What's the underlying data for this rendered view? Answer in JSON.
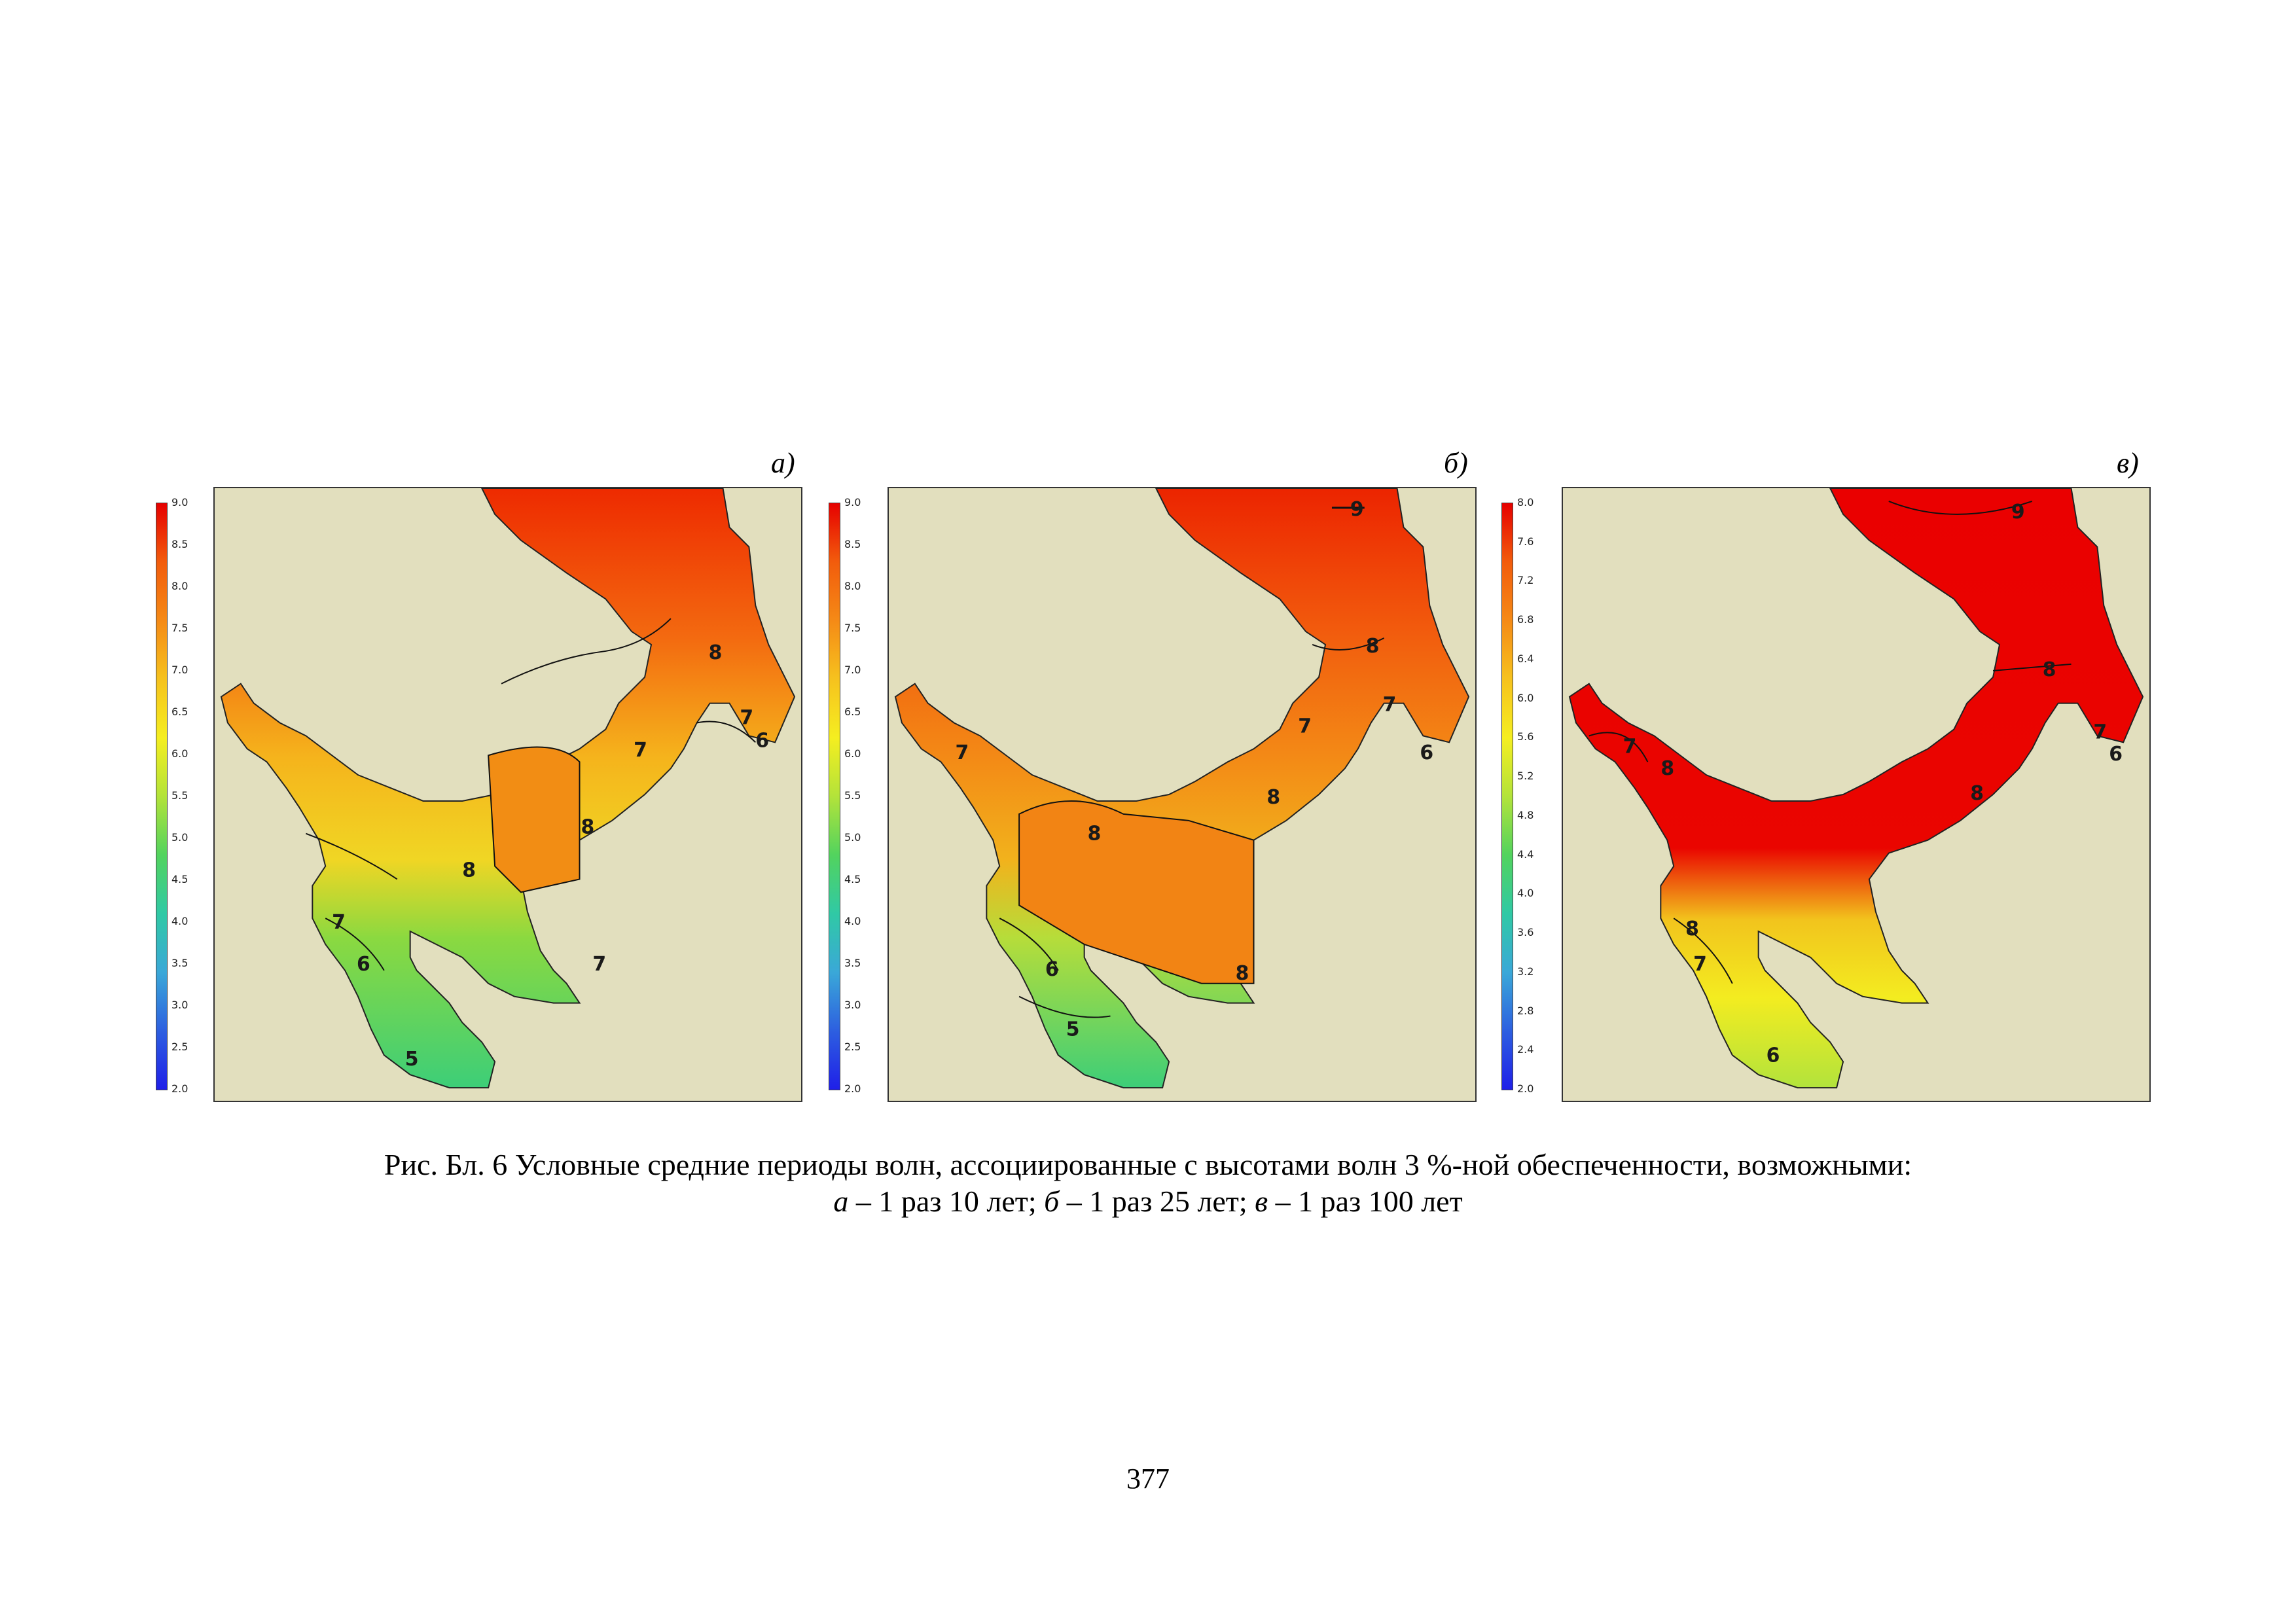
{
  "panels": [
    {
      "label": "а)",
      "colorbar_ticks": [
        "9.0",
        "8.5",
        "8.0",
        "7.5",
        "7.0",
        "6.5",
        "6.0",
        "5.5",
        "5.0",
        "4.5",
        "4.0",
        "3.5",
        "3.0",
        "2.5",
        "2.0"
      ],
      "contour_labels": [
        "8",
        "7",
        "7",
        "6",
        "8",
        "8",
        "7",
        "6",
        "7",
        "5"
      ]
    },
    {
      "label": "б)",
      "colorbar_ticks": [
        "9.0",
        "8.5",
        "8.0",
        "7.5",
        "7.0",
        "6.5",
        "6.0",
        "5.5",
        "5.0",
        "4.5",
        "4.0",
        "3.5",
        "3.0",
        "2.5",
        "2.0"
      ],
      "contour_labels": [
        "9",
        "8",
        "7",
        "7",
        "6",
        "8",
        "8",
        "7",
        "6",
        "8",
        "5"
      ]
    },
    {
      "label": "в)",
      "colorbar_ticks": [
        "8.0",
        "7.6",
        "7.2",
        "6.8",
        "6.4",
        "6.0",
        "5.6",
        "5.2",
        "4.8",
        "4.4",
        "4.0",
        "3.6",
        "3.2",
        "2.8",
        "2.4",
        "2.0"
      ],
      "contour_labels": [
        "9",
        "8",
        "7",
        "6",
        "7",
        "8",
        "8",
        "8",
        "7",
        "6"
      ]
    }
  ],
  "caption": {
    "line1": "Рис. Бл. 6 Условные средние периоды волн, ассоциированные с высотами волн 3 %-ной обеспеченности, возможными:",
    "line2_a": "а",
    "line2_a_text": " – 1 раз 10 лет; ",
    "line2_b": "б",
    "line2_b_text": " – 1 раз 25 лет; ",
    "line2_c": "в",
    "line2_c_text": " – 1 раз 100 лет"
  },
  "page_number": "377",
  "colors": {
    "land": "#e2dfbe",
    "scale": [
      "#e60000",
      "#f25c0c",
      "#f58a16",
      "#f6c21e",
      "#f5ee20",
      "#b3e33a",
      "#52d35e",
      "#30c9a5",
      "#3aa8d8",
      "#2d5fe0",
      "#1f1fe8"
    ]
  }
}
